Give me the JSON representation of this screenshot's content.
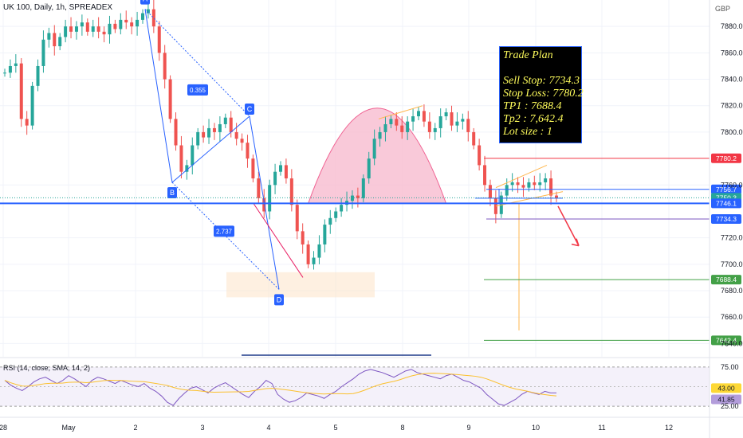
{
  "header": {
    "title": "UK 100, Daily, 1h, SPREADEX",
    "currency": "GBP"
  },
  "trade_plan": {
    "heading": "Trade Plan",
    "lines": [
      "Sell Stop: 7734.3",
      "Stop Loss: 7780.2",
      "TP1 : 7688.4",
      "Tp2 : 7,642.4",
      "Lot size : 1"
    ]
  },
  "rsi": {
    "label": "RSI (14, close, SMA, 14, 2)",
    "levels": [
      75.0,
      25.0
    ],
    "value_a": "43.00",
    "value_b": "41.85"
  },
  "colors": {
    "up": "#26a69a",
    "down": "#ef5350",
    "blue": "#2962ff",
    "green": "#089981",
    "red": "#f23645",
    "pink": "#f8bbd0"
  },
  "chart_data": {
    "type": "candlestick",
    "title": "UK 100, Daily, 1h, SPREADEX",
    "x_tick_labels": [
      "28",
      "May",
      "2",
      "3",
      "4",
      "5",
      "8",
      "9",
      "10",
      "11",
      "12"
    ],
    "y_ticks": [
      7880.0,
      7860.0,
      7840.0,
      7820.0,
      7800.0,
      7760.0,
      7720.0,
      7700.0,
      7680.0,
      7660.0,
      7640.0
    ],
    "ylim": [
      7630,
      7900
    ],
    "price_series": [
      7845,
      7850,
      7852,
      7810,
      7805,
      7835,
      7850,
      7870,
      7875,
      7865,
      7872,
      7880,
      7876,
      7880,
      7883,
      7876,
      7880,
      7876,
      7874,
      7882,
      7878,
      7885,
      7883,
      7880,
      7885,
      7890,
      7893,
      7880,
      7860,
      7840,
      7810,
      7790,
      7770,
      7775,
      7790,
      7800,
      7796,
      7803,
      7800,
      7806,
      7811,
      7800,
      7795,
      7792,
      7780,
      7765,
      7750,
      7740,
      7760,
      7770,
      7775,
      7765,
      7745,
      7725,
      7715,
      7700,
      7705,
      7715,
      7730,
      7735,
      7740,
      7745,
      7748,
      7752,
      7750,
      7765,
      7780,
      7795,
      7800,
      7806,
      7810,
      7805,
      7800,
      7808,
      7812,
      7816,
      7808,
      7800,
      7803,
      7812,
      7815,
      7805,
      7808,
      7810,
      7800,
      7790,
      7775,
      7760,
      7750,
      7738,
      7752,
      7760,
      7762,
      7760,
      7758,
      7762,
      7760,
      7762,
      7765,
      7752,
      7750
    ],
    "pattern_points": [
      {
        "label": "A",
        "value": 7893
      },
      {
        "label": "B",
        "value": 7762
      },
      {
        "label": "C",
        "value": 7812
      },
      {
        "label": "D",
        "value": 7681
      }
    ],
    "ratios": [
      "0.355",
      "2.737"
    ],
    "price_levels": [
      {
        "label": "7780.2",
        "value": 7780.2,
        "role": "stop loss"
      },
      {
        "label": "7756.7",
        "value": 7756.7
      },
      {
        "label": "7750.3",
        "value": 7750.3
      },
      {
        "label": "59:02",
        "value": 7746.5
      },
      {
        "label": "7746.1",
        "value": 7746.1
      },
      {
        "label": "7734.3",
        "value": 7734.3,
        "role": "sell stop"
      },
      {
        "label": "7688.4",
        "value": 7688.4,
        "role": "TP1"
      },
      {
        "label": "7642.4",
        "value": 7642.4,
        "role": "TP2"
      }
    ],
    "rsi_ticks": [
      75.0,
      25.0
    ],
    "rsi_series": [
      58,
      52,
      48,
      45,
      50,
      56,
      60,
      62,
      58,
      54,
      58,
      64,
      60,
      55,
      50,
      58,
      62,
      60,
      57,
      54,
      58,
      55,
      52,
      50,
      54,
      48,
      44,
      38,
      30,
      26,
      35,
      42,
      48,
      50,
      46,
      42,
      48,
      52,
      55,
      50,
      45,
      40,
      36,
      44,
      50,
      58,
      54,
      40,
      34,
      30,
      32,
      36,
      42,
      40,
      38,
      35,
      40,
      44,
      50,
      55,
      60,
      66,
      70,
      72,
      70,
      68,
      65,
      62,
      66,
      70,
      72,
      68,
      66,
      64,
      62,
      60,
      64,
      66,
      62,
      58,
      56,
      52,
      48,
      40,
      34,
      28,
      26,
      30,
      34,
      40,
      44,
      42,
      40,
      44,
      42,
      42
    ]
  }
}
